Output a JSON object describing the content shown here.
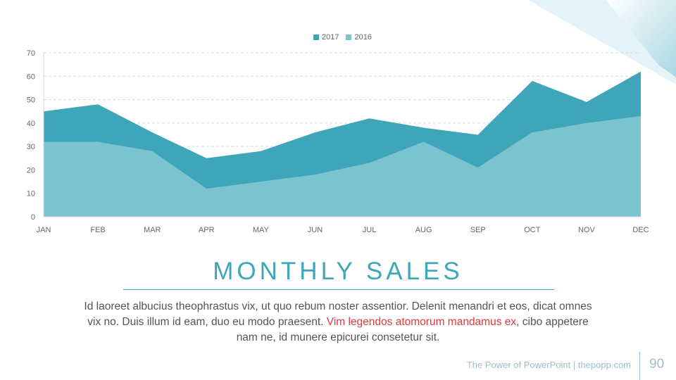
{
  "chart_data": {
    "type": "area",
    "stacked": false,
    "categories": [
      "JAN",
      "FEB",
      "MAR",
      "APR",
      "MAY",
      "JUN",
      "JUL",
      "AUG",
      "SEP",
      "OCT",
      "NOV",
      "DEC"
    ],
    "series": [
      {
        "name": "2017",
        "color": "#3ea6b8",
        "values": [
          45,
          48,
          36,
          25,
          28,
          36,
          42,
          38,
          35,
          58,
          49,
          62
        ]
      },
      {
        "name": "2016",
        "color": "#7cc3d0",
        "values": [
          32,
          32,
          28,
          12,
          15,
          18,
          23,
          32,
          21,
          36,
          40,
          43
        ]
      }
    ],
    "ylim": [
      0,
      70
    ],
    "yticks": [
      0,
      10,
      20,
      30,
      40,
      50,
      60,
      70
    ],
    "grid": true,
    "legend_position": "top-center",
    "title": "",
    "xlabel": "",
    "ylabel": ""
  },
  "slide": {
    "title": "MONTHLY SALES",
    "body_before": "Id laoreet albucius theophrastus vix, ut quo rebum noster assentior. Delenit menandri et eos, dicat omnes vix no. Duis illum id eam, duo eu modo praesent.",
    "body_highlight": "Vim legendos atomorum mandamus ex",
    "body_after": ", cibo appetere nam ne, id munere epicurei consetetur sit."
  },
  "footer": {
    "text": "The Power of PowerPoint | thepopp.com",
    "page_number": "90"
  },
  "colors": {
    "accent": "#3fa6b8",
    "highlight": "#e0393e"
  }
}
